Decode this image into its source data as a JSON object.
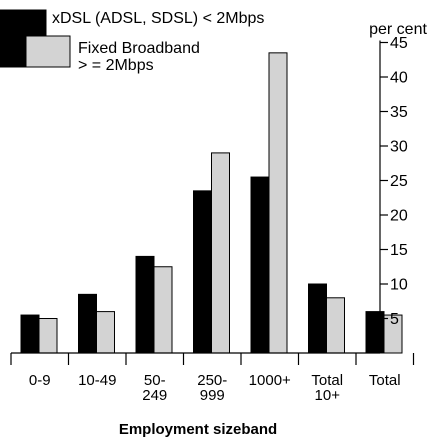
{
  "chart_data": {
    "type": "bar",
    "title": "",
    "xlabel": "Employment sizeband",
    "ylabel": "per cent",
    "ylim": [
      0,
      45
    ],
    "yticks": [
      5,
      10,
      15,
      20,
      25,
      30,
      35,
      40,
      45
    ],
    "y_axis_position": "right",
    "legend_position": "top-left",
    "grid": false,
    "categories": [
      [
        "0-9"
      ],
      [
        "10-49"
      ],
      [
        "50-",
        "249"
      ],
      [
        "250-",
        "999"
      ],
      [
        "1000+"
      ],
      [
        "Total",
        "10+"
      ],
      [
        "Total"
      ]
    ],
    "series": [
      {
        "name": "xDSL (ADSL, SDSL) < 2Mbps",
        "legend_lines": [
          "xDSL (ADSL, SDSL) < 2Mbps"
        ],
        "color": "#000000",
        "values": [
          5.5,
          8.5,
          14,
          23.5,
          25.5,
          10,
          6
        ]
      },
      {
        "name": "Fixed Broadband > = 2Mbps",
        "legend_lines": [
          "Fixed Broadband",
          "> = 2Mbps"
        ],
        "color": "#d3d3d3",
        "values": [
          5,
          6,
          12.5,
          29,
          43.5,
          8,
          5.5
        ]
      }
    ]
  }
}
